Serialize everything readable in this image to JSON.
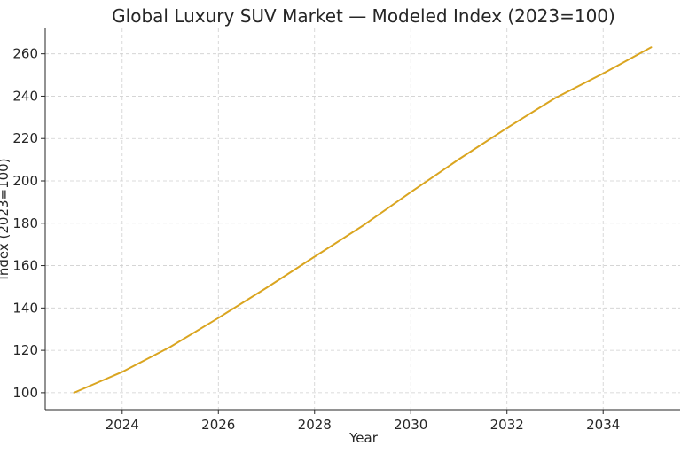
{
  "chart_data": {
    "type": "line",
    "title": "Global Luxury SUV Market — Modeled Index (2023=100)",
    "xlabel": "Year",
    "ylabel": "Index (2023=100)",
    "x": [
      2023,
      2024,
      2025,
      2026,
      2027,
      2028,
      2029,
      2030,
      2031,
      2032,
      2033,
      2034,
      2035
    ],
    "series": [
      {
        "values": [
          100.0,
          109.8,
          121.6,
          135.3,
          149.5,
          164.2,
          178.8,
          194.7,
          210.2,
          225.0,
          239.1,
          250.7,
          263.1
        ],
        "color": "#DAA520"
      }
    ],
    "xlim": [
      2022.4,
      2035.6
    ],
    "ylim": [
      92,
      272
    ],
    "xticks": [
      2024,
      2026,
      2028,
      2030,
      2032,
      2034
    ],
    "yticks": [
      100,
      120,
      140,
      160,
      180,
      200,
      220,
      240,
      260
    ],
    "grid": true
  }
}
